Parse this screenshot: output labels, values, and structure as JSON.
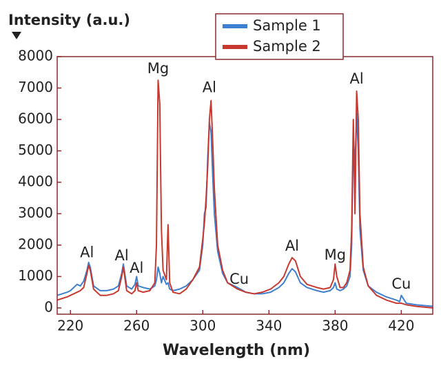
{
  "chart_data": {
    "type": "line",
    "title": "Intensity (a.u.)",
    "x_label": "Wavelength (nm)",
    "xlim": [
      212,
      439
    ],
    "ylim": [
      -200,
      8000
    ],
    "xticks": [
      220,
      260,
      300,
      340,
      380,
      420
    ],
    "yticks": [
      0,
      1000,
      2000,
      3000,
      4000,
      5000,
      6000,
      7000,
      8000
    ],
    "legend": "upper center",
    "x": [
      212,
      215,
      218,
      220,
      222,
      224,
      226,
      228,
      230,
      231,
      232,
      234,
      238,
      242,
      246,
      249,
      251,
      252,
      254,
      257,
      259,
      260,
      261,
      264,
      268,
      271,
      272,
      273,
      274,
      275,
      276,
      278,
      279,
      280,
      282,
      286,
      290,
      294,
      298,
      300,
      301,
      302,
      303,
      304,
      305,
      306,
      307,
      309,
      312,
      315,
      321,
      326,
      331,
      336,
      341,
      346,
      349,
      352,
      354,
      356,
      359,
      363,
      369,
      373,
      377,
      379,
      380,
      381,
      383,
      385,
      387,
      389,
      390,
      391,
      392,
      393,
      394,
      395,
      397,
      400,
      405,
      411,
      417,
      419,
      420,
      423,
      429,
      439
    ],
    "series": [
      {
        "name": "Sample 1",
        "color": "#3d7fd0",
        "values": [
          400,
          450,
          500,
          550,
          650,
          750,
          700,
          850,
          1200,
          1450,
          1300,
          700,
          550,
          550,
          600,
          700,
          1100,
          1400,
          700,
          600,
          750,
          1000,
          700,
          650,
          600,
          700,
          900,
          1300,
          1100,
          800,
          1000,
          750,
          800,
          600,
          550,
          600,
          700,
          900,
          1200,
          2000,
          3000,
          3200,
          4800,
          5900,
          5600,
          4200,
          3000,
          1800,
          1100,
          800,
          650,
          500,
          450,
          450,
          500,
          650,
          800,
          1100,
          1250,
          1150,
          800,
          650,
          550,
          500,
          550,
          650,
          800,
          600,
          550,
          600,
          700,
          1000,
          2000,
          5500,
          4500,
          6200,
          5000,
          2500,
          1200,
          700,
          500,
          350,
          250,
          200,
          400,
          150,
          100,
          50
        ]
      },
      {
        "name": "Sample 2",
        "color": "#c8382f",
        "values": [
          250,
          300,
          350,
          400,
          450,
          500,
          550,
          650,
          1100,
          1350,
          1200,
          600,
          400,
          400,
          450,
          550,
          1000,
          1300,
          550,
          450,
          550,
          800,
          550,
          500,
          550,
          800,
          2000,
          7250,
          6500,
          2500,
          1200,
          900,
          2650,
          800,
          500,
          450,
          600,
          900,
          1300,
          2200,
          2700,
          3500,
          4500,
          6000,
          6600,
          5300,
          3800,
          2000,
          1200,
          800,
          600,
          500,
          450,
          500,
          600,
          800,
          1000,
          1400,
          1600,
          1500,
          1000,
          750,
          650,
          600,
          650,
          900,
          1400,
          1000,
          650,
          650,
          800,
          1200,
          2500,
          6000,
          3000,
          6900,
          6000,
          3000,
          1300,
          700,
          400,
          250,
          150,
          150,
          150,
          100,
          50,
          0
        ]
      }
    ],
    "annotations": [
      {
        "text": "Al",
        "x": 230,
        "y": 1750
      },
      {
        "text": "Al",
        "x": 251,
        "y": 1650
      },
      {
        "text": "Al",
        "x": 260,
        "y": 1250
      },
      {
        "text": "Mg",
        "x": 273,
        "y": 7600
      },
      {
        "text": "Al",
        "x": 304,
        "y": 7000
      },
      {
        "text": "Cu",
        "x": 322,
        "y": 900
      },
      {
        "text": "Al",
        "x": 354,
        "y": 1950
      },
      {
        "text": "Mg",
        "x": 380,
        "y": 1670
      },
      {
        "text": "Al",
        "x": 393,
        "y": 7270
      },
      {
        "text": "Cu",
        "x": 420,
        "y": 750
      }
    ]
  }
}
